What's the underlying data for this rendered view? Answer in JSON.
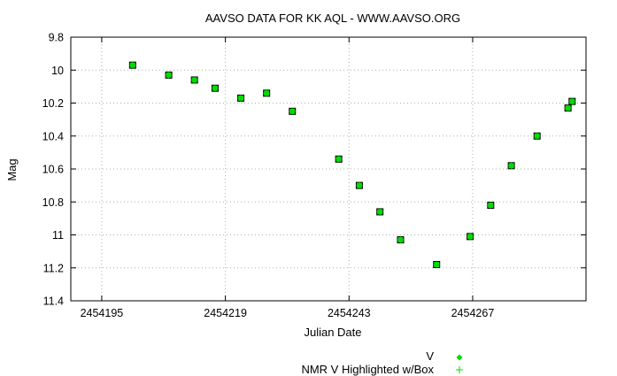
{
  "chart_data": {
    "type": "scatter",
    "title": "AAVSO DATA FOR KK AQL - WWW.AAVSO.ORG",
    "xlabel": "Julian Date",
    "ylabel": "Mag",
    "xlim": [
      2454189,
      2454289
    ],
    "ylim": [
      9.8,
      11.4
    ],
    "y_inverted": true,
    "x_ticks": [
      2454195,
      2454219,
      2454243,
      2454267
    ],
    "y_ticks": [
      9.8,
      10,
      10.2,
      10.4,
      10.6,
      10.8,
      11,
      11.2,
      11.4
    ],
    "x_tick_labels": [
      "2454195",
      "2454219",
      "2454243",
      "2454267"
    ],
    "y_tick_labels": [
      "9.8",
      "10",
      "10.2",
      "10.4",
      "10.6",
      "10.8",
      "11",
      "11.2",
      "11.4"
    ],
    "grid": true,
    "legend_position": "bottom-right",
    "series": [
      {
        "name": "V",
        "marker": "diamond",
        "color": "#00dd00",
        "x": [
          2454201,
          2454208,
          2454213,
          2454217,
          2454222,
          2454227,
          2454232,
          2454241,
          2454245,
          2454249,
          2454253,
          2454260,
          2454266.5,
          2454270.5,
          2454274.5,
          2454279.5,
          2454285.5,
          2454286.3
        ],
        "y": [
          9.97,
          10.03,
          10.06,
          10.11,
          10.17,
          10.14,
          10.25,
          10.54,
          10.7,
          10.86,
          11.03,
          11.18,
          11.01,
          10.82,
          10.58,
          10.4,
          10.23,
          10.19
        ]
      },
      {
        "name": "NMR V Highlighted w/Box",
        "marker": "plus-box",
        "color": "#00dd00",
        "x": [
          2454201,
          2454208,
          2454213,
          2454217,
          2454222,
          2454227,
          2454232,
          2454241,
          2454245,
          2454249,
          2454253,
          2454260,
          2454266.5,
          2454270.5,
          2454274.5,
          2454279.5,
          2454285.5,
          2454286.3
        ],
        "y": [
          9.97,
          10.03,
          10.06,
          10.11,
          10.17,
          10.14,
          10.25,
          10.54,
          10.7,
          10.86,
          11.03,
          11.18,
          11.01,
          10.82,
          10.58,
          10.4,
          10.23,
          10.19
        ]
      }
    ]
  }
}
